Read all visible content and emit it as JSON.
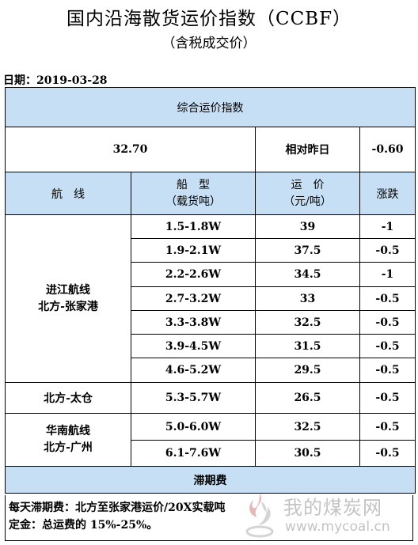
{
  "header": {
    "title": "国内沿海散货运价指数（CCBF）",
    "subtitle": "（含税成交价）",
    "date": "日期：2019-03-28"
  },
  "summary": {
    "title": "综合运价指数",
    "index_value": "32.70",
    "change_label": "相对昨日",
    "change_value": "-0.60"
  },
  "columns": {
    "route": "航　线",
    "ship_type_line1": "船　型",
    "ship_type_line2": "（载货吨）",
    "freight_line1": "运　价",
    "freight_line2": "（元/吨）",
    "change": "涨跌"
  },
  "groups": [
    {
      "route_line1": "进江航线",
      "route_line2": "北方-张家港",
      "rows": [
        {
          "ship": "1.5-1.8W",
          "price": "39",
          "change": "-1"
        },
        {
          "ship": "1.9-2.1W",
          "price": "37.5",
          "change": "-0.5"
        },
        {
          "ship": "2.2-2.6W",
          "price": "34.5",
          "change": "-1"
        },
        {
          "ship": "2.7-3.2W",
          "price": "33",
          "change": "-0.5"
        },
        {
          "ship": "3.3-3.8W",
          "price": "32.5",
          "change": "-0.5"
        },
        {
          "ship": "3.9-4.5W",
          "price": "31.5",
          "change": "-0.5"
        },
        {
          "ship": "4.6-5.2W",
          "price": "29.5",
          "change": "-0.5"
        }
      ]
    },
    {
      "route_line1": "北方-太仓",
      "route_line2": "",
      "rows": [
        {
          "ship": "5.3-5.7W",
          "price": "26.5",
          "change": "-0.5"
        }
      ]
    },
    {
      "route_line1": "华南航线",
      "route_line2": "北方-广州",
      "rows": [
        {
          "ship": "5.0-6.0W",
          "price": "32.5",
          "change": "-0.5"
        },
        {
          "ship": "6.1-7.6W",
          "price": "30.5",
          "change": "-0.5"
        }
      ]
    }
  ],
  "demurrage": {
    "title": "滞期费",
    "line1": "每天滞期费：北方至张家港运价/20X实载吨",
    "line2": "定金：总运费的 15%-25%。"
  },
  "watermark": {
    "name": "我的煤炭网",
    "url": "www.mycoal.cn",
    "logo_icon": "flame-logo-icon",
    "color": "#b9b9b9"
  },
  "colors": {
    "header_bg": "#c7dff4"
  }
}
